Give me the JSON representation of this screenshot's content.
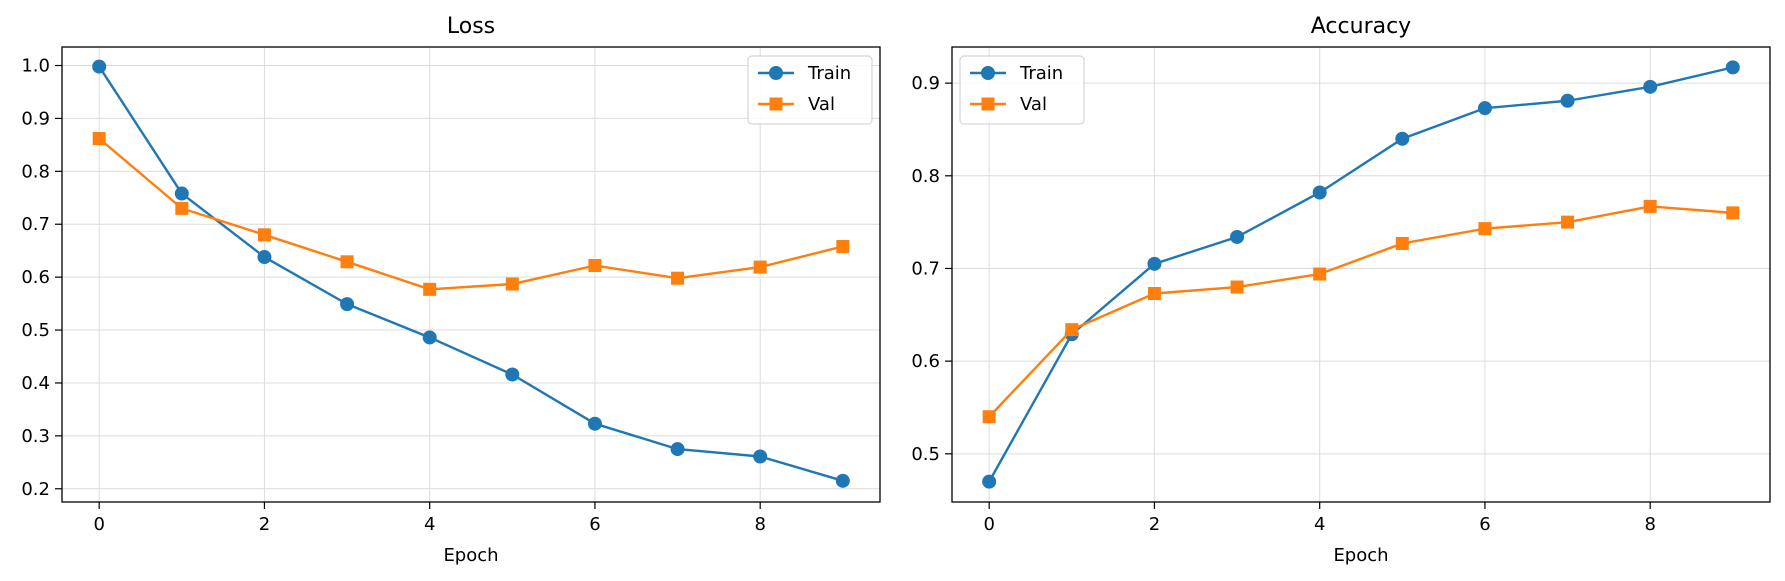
{
  "chart_data": [
    {
      "type": "line",
      "title": "Loss",
      "xlabel": "Epoch",
      "ylabel": "",
      "xlim": [
        -0.45,
        9.45
      ],
      "ylim": [
        0.175,
        1.035
      ],
      "xticks": [
        0,
        2,
        4,
        6,
        8
      ],
      "xtick_labels": [
        "0",
        "2",
        "4",
        "6",
        "8"
      ],
      "yticks": [
        0.2,
        0.3,
        0.4,
        0.5,
        0.6,
        0.7,
        0.8,
        0.9,
        1.0
      ],
      "ytick_labels": [
        "0.2",
        "0.3",
        "0.4",
        "0.5",
        "0.6",
        "0.7",
        "0.8",
        "0.9",
        "1.0"
      ],
      "grid": true,
      "legend_position": "top-right",
      "x": [
        0,
        1,
        2,
        3,
        4,
        5,
        6,
        7,
        8,
        9
      ],
      "series": [
        {
          "name": "Train",
          "color": "#1f77b4",
          "marker": "circle",
          "values": [
            0.998,
            0.758,
            0.638,
            0.549,
            0.486,
            0.416,
            0.323,
            0.275,
            0.261,
            0.215
          ]
        },
        {
          "name": "Val",
          "color": "#ff7f0e",
          "marker": "square",
          "values": [
            0.862,
            0.73,
            0.68,
            0.629,
            0.577,
            0.587,
            0.622,
            0.598,
            0.619,
            0.658
          ]
        }
      ]
    },
    {
      "type": "line",
      "title": "Accuracy",
      "xlabel": "Epoch",
      "ylabel": "",
      "xlim": [
        -0.45,
        9.45
      ],
      "ylim": [
        0.448,
        0.939
      ],
      "xticks": [
        0,
        2,
        4,
        6,
        8
      ],
      "xtick_labels": [
        "0",
        "2",
        "4",
        "6",
        "8"
      ],
      "yticks": [
        0.5,
        0.6,
        0.7,
        0.8,
        0.9
      ],
      "ytick_labels": [
        "0.5",
        "0.6",
        "0.7",
        "0.8",
        "0.9"
      ],
      "grid": true,
      "legend_position": "top-left",
      "x": [
        0,
        1,
        2,
        3,
        4,
        5,
        6,
        7,
        8,
        9
      ],
      "series": [
        {
          "name": "Train",
          "color": "#1f77b4",
          "marker": "circle",
          "values": [
            0.47,
            0.629,
            0.705,
            0.734,
            0.782,
            0.84,
            0.873,
            0.881,
            0.896,
            0.917
          ]
        },
        {
          "name": "Val",
          "color": "#ff7f0e",
          "marker": "square",
          "values": [
            0.54,
            0.634,
            0.673,
            0.68,
            0.694,
            0.727,
            0.743,
            0.75,
            0.767,
            0.76
          ]
        }
      ]
    }
  ]
}
